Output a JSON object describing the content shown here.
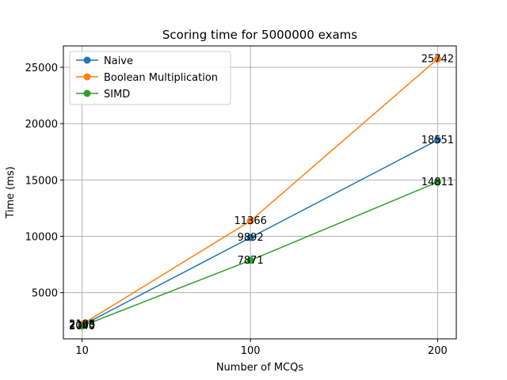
{
  "chart_data": {
    "type": "line",
    "title": "Scoring time for 5000000 exams",
    "xlabel": "Number of MCQs",
    "ylabel": "Time (ms)",
    "categories": [
      "10",
      "100",
      "200"
    ],
    "x": [
      10,
      100,
      200
    ],
    "xticks": [
      10,
      100,
      200
    ],
    "yticks": [
      5000,
      10000,
      15000,
      20000,
      25000
    ],
    "ylim": [
      900,
      26900
    ],
    "xlim": [
      0,
      210
    ],
    "grid": true,
    "legend_position": "upper-left",
    "series": [
      {
        "name": "Naive",
        "color": "#1f77b4",
        "values": [
          2093,
          9892,
          18551
        ],
        "labels": [
          "2093",
          "9892",
          "18551"
        ]
      },
      {
        "name": "Boolean Multiplication",
        "color": "#ff7f0e",
        "values": [
          2188,
          11366,
          25742
        ],
        "labels": [
          "2188",
          "11366",
          "25742"
        ]
      },
      {
        "name": "SIMD",
        "color": "#2ca02c",
        "values": [
          2040,
          7871,
          14811
        ],
        "labels": [
          "2040",
          "7871",
          "14811"
        ]
      }
    ]
  }
}
